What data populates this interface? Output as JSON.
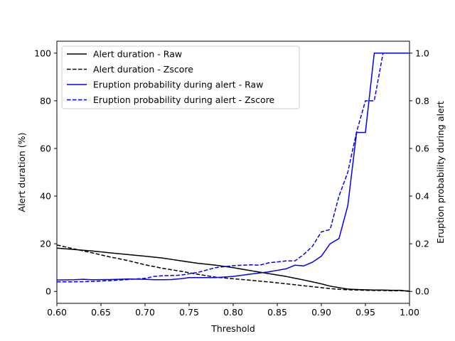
{
  "chart_data": {
    "type": "line",
    "xlabel": "Threshold",
    "ylabel_left": "Alert duration (%)",
    "ylabel_right": "Eruption probability during alert",
    "xlim": [
      0.6,
      1.0
    ],
    "ylim_left": [
      -5,
      105
    ],
    "ylim_right": [
      -0.05,
      1.05
    ],
    "xticks": [
      0.6,
      0.65,
      0.7,
      0.75,
      0.8,
      0.85,
      0.9,
      0.95,
      1.0
    ],
    "xtick_labels": [
      "0.60",
      "0.65",
      "0.70",
      "0.75",
      "0.80",
      "0.85",
      "0.90",
      "0.95",
      "1.00"
    ],
    "yticks_left": [
      0,
      20,
      40,
      60,
      80,
      100
    ],
    "ytick_labels_left": [
      "0",
      "20",
      "40",
      "60",
      "80",
      "100"
    ],
    "yticks_right": [
      0,
      0.2,
      0.4,
      0.6,
      0.8,
      1.0
    ],
    "ytick_labels_right": [
      "0.0",
      "0.2",
      "0.4",
      "0.6",
      "0.8",
      "1.0"
    ],
    "grid": false,
    "legend_position": "upper-left",
    "series": [
      {
        "name": "Alert duration - Raw",
        "axis": "left",
        "color": "#000000",
        "dash": "solid",
        "x": [
          0.6,
          0.62,
          0.64,
          0.66,
          0.68,
          0.7,
          0.72,
          0.74,
          0.76,
          0.78,
          0.8,
          0.82,
          0.84,
          0.86,
          0.88,
          0.9,
          0.91,
          0.92,
          0.93,
          0.94,
          0.95,
          0.96,
          0.97,
          0.98,
          0.99,
          1.0
        ],
        "y": [
          18.2,
          17.6,
          17.0,
          16.2,
          15.5,
          14.8,
          14.0,
          12.9,
          11.8,
          11.0,
          10.0,
          8.7,
          7.5,
          6.3,
          4.8,
          3.2,
          2.2,
          1.6,
          1.0,
          0.8,
          0.7,
          0.6,
          0.6,
          0.5,
          0.5,
          0.0
        ]
      },
      {
        "name": "Alert duration - Zscore",
        "axis": "left",
        "color": "#000000",
        "dash": "dashed",
        "x": [
          0.6,
          0.62,
          0.64,
          0.66,
          0.68,
          0.7,
          0.72,
          0.74,
          0.76,
          0.78,
          0.8,
          0.82,
          0.84,
          0.86,
          0.88,
          0.9,
          0.91,
          0.92,
          0.93,
          0.94,
          0.95,
          0.96,
          0.97,
          0.98,
          0.99,
          1.0
        ],
        "y": [
          19.5,
          17.8,
          16.2,
          14.5,
          13.0,
          11.2,
          9.7,
          8.5,
          7.2,
          6.0,
          5.3,
          4.7,
          4.0,
          3.2,
          2.4,
          1.6,
          1.2,
          0.9,
          0.7,
          0.6,
          0.5,
          0.4,
          0.4,
          0.3,
          0.3,
          0.2
        ]
      },
      {
        "name": "Eruption probability during alert - Raw",
        "axis": "right",
        "color": "#0000ff",
        "dash": "solid",
        "x": [
          0.6,
          0.62,
          0.63,
          0.64,
          0.66,
          0.68,
          0.7,
          0.71,
          0.72,
          0.73,
          0.74,
          0.75,
          0.76,
          0.78,
          0.8,
          0.82,
          0.84,
          0.86,
          0.87,
          0.88,
          0.89,
          0.9,
          0.91,
          0.92,
          0.93,
          0.94,
          0.95,
          0.96,
          0.97,
          0.98,
          1.0
        ],
        "y": [
          0.048,
          0.049,
          0.051,
          0.049,
          0.05,
          0.052,
          0.051,
          0.049,
          0.049,
          0.05,
          0.053,
          0.058,
          0.058,
          0.058,
          0.063,
          0.073,
          0.082,
          0.095,
          0.11,
          0.107,
          0.123,
          0.148,
          0.2,
          0.222,
          0.36,
          0.667,
          0.667,
          1.0,
          1.0,
          1.0,
          1.0
        ]
      },
      {
        "name": "Eruption probability during alert - Zscore",
        "axis": "right",
        "color": "#0000ff",
        "dash": "dashed",
        "x": [
          0.6,
          0.62,
          0.64,
          0.66,
          0.68,
          0.7,
          0.71,
          0.72,
          0.74,
          0.76,
          0.78,
          0.8,
          0.82,
          0.83,
          0.84,
          0.86,
          0.87,
          0.88,
          0.89,
          0.9,
          0.91,
          0.92,
          0.93,
          0.94,
          0.95,
          0.96,
          0.97,
          0.98,
          1.0
        ],
        "y": [
          0.04,
          0.04,
          0.042,
          0.045,
          0.05,
          0.055,
          0.063,
          0.066,
          0.068,
          0.08,
          0.1,
          0.108,
          0.112,
          0.11,
          0.12,
          0.128,
          0.128,
          0.155,
          0.19,
          0.25,
          0.26,
          0.4,
          0.5,
          0.67,
          0.8,
          0.8,
          1.0,
          1.0,
          1.0
        ]
      }
    ]
  }
}
